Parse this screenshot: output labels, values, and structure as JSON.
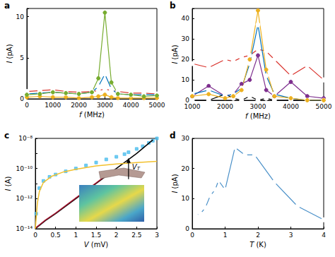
{
  "chart_data": [
    {
      "panel": "a",
      "type": "line",
      "x_label": "f (MHz)",
      "y_label": "I (pA)",
      "xlim": [
        0,
        5000
      ],
      "xticks": [
        0,
        1000,
        2000,
        3000,
        4000,
        5000
      ],
      "ylim": [
        0,
        11
      ],
      "yticks": [
        0,
        5,
        10
      ],
      "grid": false,
      "x": [
        0,
        500,
        1000,
        1500,
        2000,
        2500,
        2750,
        3000,
        3250,
        3500,
        4000,
        4500,
        5000
      ],
      "series": [
        {
          "color": "#d9312b",
          "marker": "open_circle",
          "values": [
            0.9,
            1.0,
            1.1,
            0.9,
            0.8,
            0.9,
            1.0,
            1.2,
            1.0,
            0.9,
            0.7,
            0.7,
            0.6
          ]
        },
        {
          "color": "#edb120",
          "marker": "circle",
          "values": [
            0.2,
            0.3,
            0.2,
            0.2,
            0.1,
            0.2,
            0.3,
            0.5,
            0.2,
            0.1,
            0.1,
            0.1,
            0.1
          ]
        },
        {
          "color": "#0072bd",
          "marker": "open_circle",
          "values": [
            0.6,
            0.7,
            0.8,
            0.7,
            0.6,
            0.8,
            1.5,
            3.0,
            1.2,
            0.6,
            0.5,
            0.5,
            0.5
          ]
        },
        {
          "color": "#77ac30",
          "marker": "circle",
          "values": [
            0.5,
            0.6,
            0.8,
            0.7,
            0.6,
            0.8,
            2.5,
            10.5,
            2.0,
            0.6,
            0.5,
            0.3,
            0.4
          ]
        }
      ]
    },
    {
      "panel": "b",
      "type": "line",
      "x_label": "f (MHz)",
      "y_label": "I (pA)",
      "xlim": [
        1000,
        5000
      ],
      "xticks": [
        1000,
        2000,
        3000,
        4000,
        5000
      ],
      "ylim": [
        0,
        45
      ],
      "yticks": [
        0,
        10,
        20,
        30,
        40
      ],
      "grid": false,
      "x": [
        1000,
        1500,
        2000,
        2250,
        2500,
        2750,
        3000,
        3250,
        3500,
        4000,
        4500,
        5000
      ],
      "series": [
        {
          "color": "#d9312b",
          "marker": "open_circle",
          "values": [
            18,
            16,
            20,
            19,
            21,
            22,
            25,
            24,
            20,
            12,
            17,
            10
          ]
        },
        {
          "color": "#000000",
          "marker": "open_circle",
          "values": [
            0,
            0,
            3,
            1,
            0,
            2,
            0,
            1,
            0,
            0,
            0,
            0
          ]
        },
        {
          "color": "#7e2f8e",
          "marker": "circle",
          "values": [
            2,
            7,
            2,
            3,
            8,
            10,
            22,
            5,
            2,
            9,
            2,
            1
          ]
        },
        {
          "color": "#0072bd",
          "marker": "open_circle",
          "values": [
            3,
            5,
            2,
            3,
            6,
            18,
            37,
            12,
            3,
            1,
            0,
            0
          ]
        },
        {
          "color": "#edb120",
          "marker": "circle",
          "values": [
            2,
            3,
            1,
            2,
            5,
            20,
            44,
            15,
            2,
            1,
            0,
            0
          ]
        }
      ]
    },
    {
      "panel": "c",
      "type": "line",
      "x_label": "V (mV)",
      "y_label": "I (A)",
      "log": "y",
      "xlim": [
        0,
        3
      ],
      "xticks": [
        0,
        0.5,
        1,
        1.5,
        2,
        2.5,
        3
      ],
      "ylim": [
        1e-14,
        1e-08
      ],
      "yticks": [
        {
          "value": 1e-14,
          "label": "10⁻¹⁴"
        },
        {
          "value": 1e-12,
          "label": "10⁻¹²"
        },
        {
          "value": 1e-10,
          "label": "10⁻¹⁰"
        },
        {
          "value": 1e-08,
          "label": "10⁻⁸"
        }
      ],
      "grid": false,
      "annotation": {
        "text": "V",
        "subscript": "T",
        "x": 2.3,
        "y": 5e-10
      },
      "series": [
        {
          "type": "scatter",
          "color": "#4dbeee",
          "marker": "square",
          "x": [
            0.02,
            0.1,
            0.2,
            0.35,
            0.5,
            0.75,
            1.0,
            1.25,
            1.5,
            1.75,
            2.0,
            2.2,
            2.3,
            2.5,
            2.65,
            2.8,
            2.9,
            3.0
          ],
          "values": [
            1e-13,
            5e-12,
            1.5e-11,
            2.8e-11,
            4e-11,
            6.5e-11,
            1e-10,
            1.6e-10,
            2.5e-10,
            4e-10,
            6e-10,
            9e-10,
            1.2e-09,
            2e-09,
            3e-09,
            5e-09,
            7e-09,
            1e-08
          ]
        },
        {
          "type": "line",
          "color": "#000000",
          "marker": "none",
          "x": [
            0,
            0.25,
            0.5,
            1.0,
            1.5,
            2.0,
            2.5,
            2.9
          ],
          "values": [
            1e-14,
            3.5e-14,
            1e-13,
            1e-12,
            1e-11,
            1e-10,
            1e-09,
            8e-09
          ]
        },
        {
          "type": "line",
          "color": "#a2142f",
          "marker": "none",
          "x": [
            0,
            0.25,
            0.5,
            1.0,
            1.5,
            1.8
          ],
          "values": [
            1.1e-14,
            3.8e-14,
            1.1e-13,
            1.1e-12,
            1.1e-11,
            4.5e-11
          ]
        },
        {
          "type": "line",
          "color": "#f2c12e",
          "marker": "none",
          "x": [
            0,
            0.05,
            0.1,
            0.2,
            0.4,
            0.7,
            1.0,
            1.5,
            2.0,
            2.5,
            3.0
          ],
          "values": [
            1e-14,
            5e-13,
            3e-12,
            1.2e-11,
            3e-11,
            6e-11,
            9e-11,
            1.5e-10,
            2e-10,
            2.5e-10,
            3e-10
          ]
        }
      ]
    },
    {
      "panel": "d",
      "type": "line",
      "x_label": "T (K)",
      "y_label": "I (pA)",
      "xlim": [
        0,
        4
      ],
      "xticks": [
        0,
        1,
        2,
        3,
        4
      ],
      "ylim": [
        0,
        30
      ],
      "yticks": [
        0,
        10,
        20,
        30
      ],
      "grid": false,
      "x": [
        0.1,
        0.25,
        0.4,
        0.55,
        0.7,
        0.8,
        1.0,
        1.3,
        1.6,
        1.9,
        2.5,
        3.2,
        4.0
      ],
      "series": [
        {
          "color": "#4a90c8",
          "marker": "open_circle",
          "values": [
            4.5,
            5,
            7,
            11,
            13,
            16,
            13,
            27,
            24.5,
            24.5,
            15.5,
            7.5,
            3
          ]
        }
      ]
    }
  ]
}
